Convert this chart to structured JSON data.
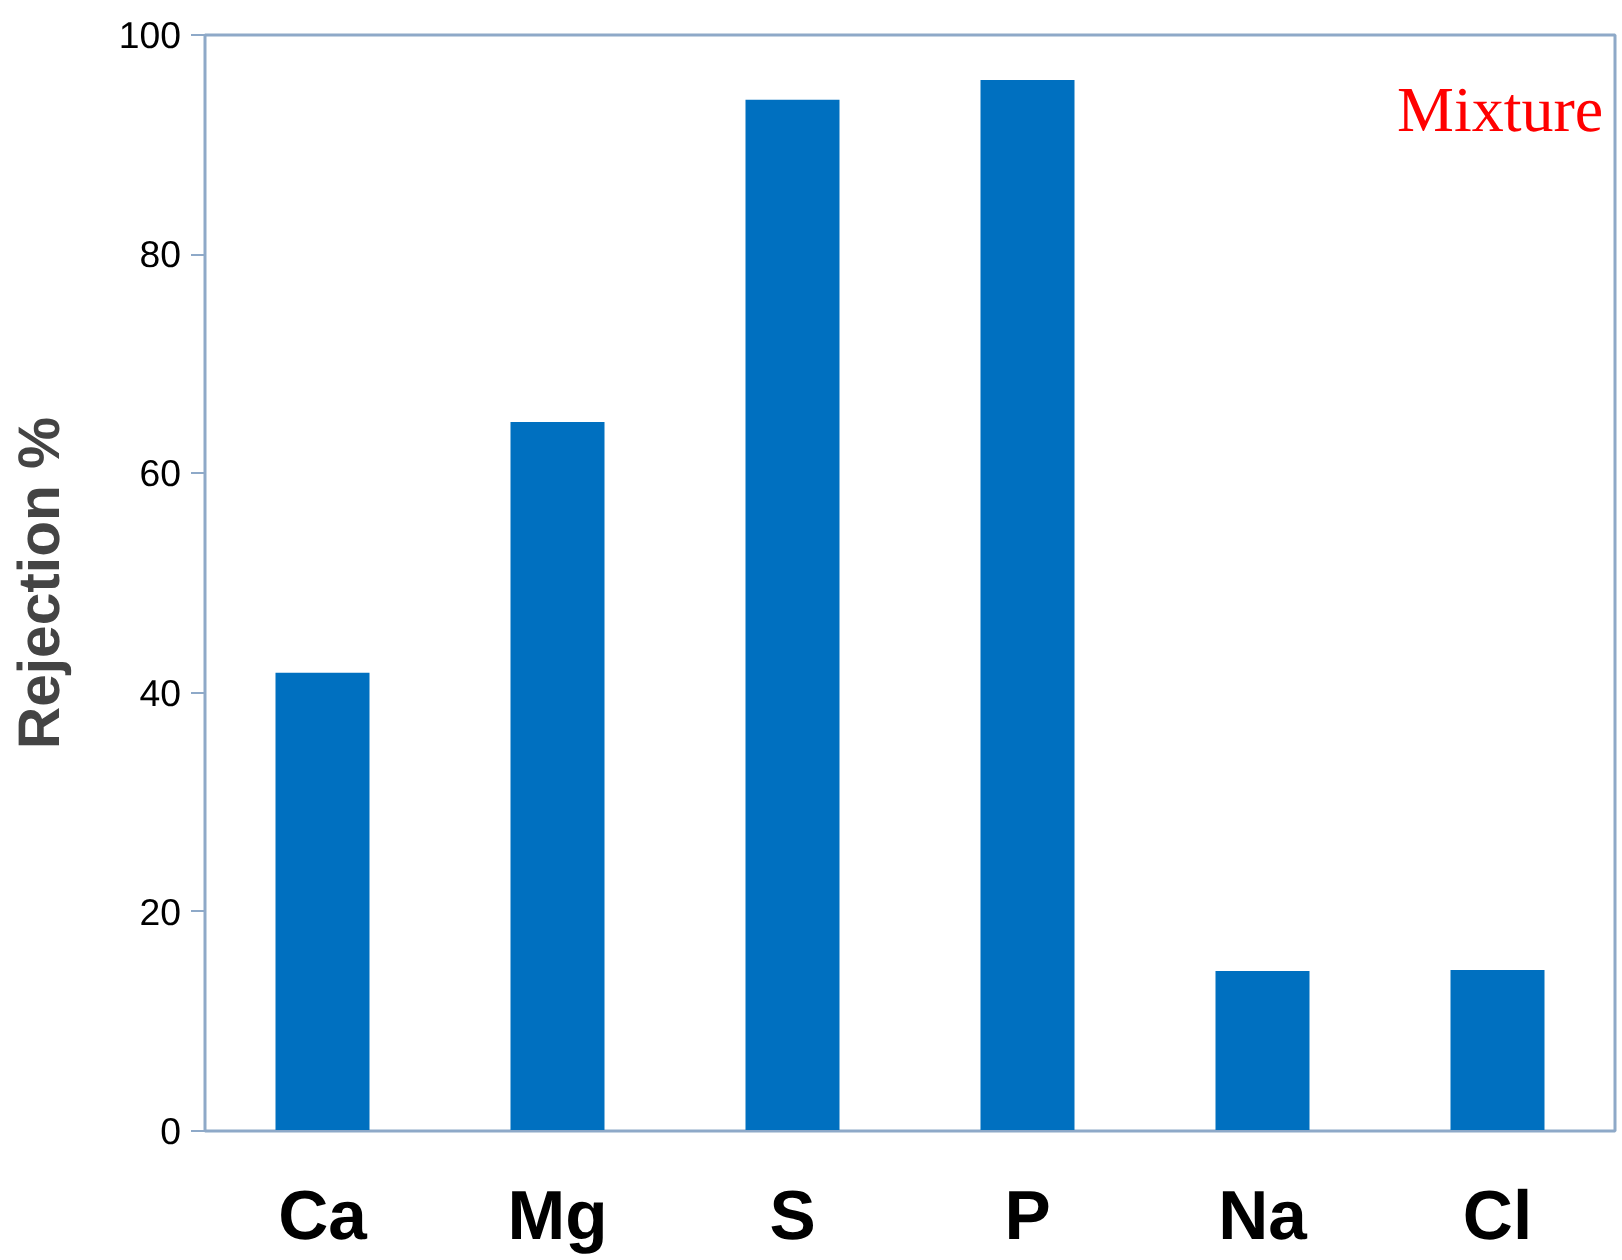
{
  "chart_data": {
    "type": "bar",
    "ylabel": "Rejection %",
    "categories": [
      "Ca",
      "Mg",
      "S",
      "P",
      "Na",
      "Cl"
    ],
    "values": [
      41.8,
      64.7,
      94.1,
      95.9,
      14.6,
      14.7
    ],
    "color": "#0070c0",
    "ylim": [
      0,
      100
    ],
    "yticks": [
      0,
      20,
      40,
      60,
      80,
      100
    ],
    "grid": false,
    "annotations": [
      "Mixture"
    ]
  }
}
